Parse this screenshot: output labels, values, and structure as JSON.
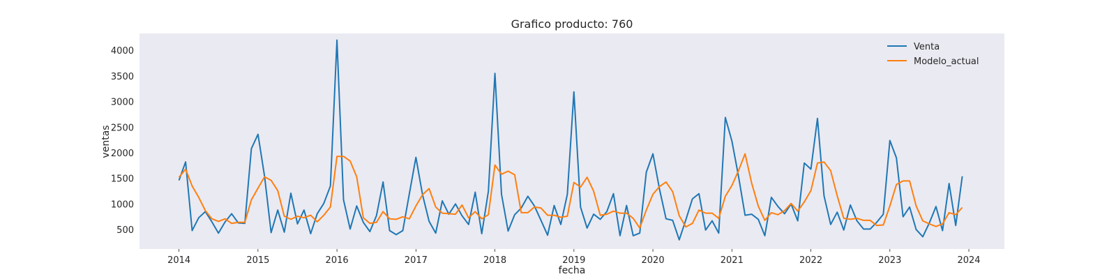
{
  "chart_data": {
    "type": "line",
    "title": "Grafico producto: 760",
    "xlabel": "fecha",
    "ylabel": "ventas",
    "x_start": "2014-01",
    "x_step": "month",
    "x_ticks": [
      "2014",
      "2015",
      "2016",
      "2017",
      "2018",
      "2019",
      "2020",
      "2021",
      "2022",
      "2023",
      "2024"
    ],
    "y_ticks": [
      500,
      1000,
      1500,
      2000,
      2500,
      3000,
      3500,
      4000
    ],
    "ylim": [
      120,
      4330
    ],
    "grid": false,
    "legend_position": "top-right",
    "background": "#eaeaf2",
    "series": [
      {
        "name": "Venta",
        "color": "#1f77b4",
        "values": [
          1460,
          1820,
          480,
          730,
          850,
          650,
          430,
          650,
          810,
          630,
          620,
          2080,
          2360,
          1540,
          440,
          880,
          450,
          1210,
          610,
          880,
          420,
          810,
          1010,
          1350,
          4200,
          1080,
          510,
          960,
          640,
          460,
          770,
          1430,
          480,
          400,
          480,
          1200,
          1910,
          1180,
          660,
          430,
          1060,
          800,
          1000,
          770,
          600,
          1230,
          420,
          1250,
          3550,
          1190,
          470,
          790,
          920,
          1150,
          960,
          680,
          390,
          970,
          600,
          1190,
          3190,
          940,
          530,
          800,
          700,
          850,
          1200,
          380,
          970,
          380,
          430,
          1620,
          1980,
          1290,
          710,
          680,
          300,
          690,
          1100,
          1200,
          490,
          670,
          430,
          2690,
          2230,
          1540,
          780,
          800,
          700,
          380,
          1130,
          950,
          810,
          1000,
          670,
          1800,
          1680,
          2670,
          1160,
          600,
          840,
          490,
          980,
          670,
          510,
          510,
          640,
          800,
          2240,
          1900,
          750,
          940,
          500,
          360,
          630,
          950,
          480,
          1400,
          580,
          1540
        ],
        "style": "line"
      },
      {
        "name": "Modelo_actual",
        "color": "#ff7f0e",
        "values": [
          1520,
          1680,
          1350,
          1130,
          870,
          710,
          660,
          710,
          620,
          640,
          640,
          1080,
          1310,
          1530,
          1460,
          1260,
          760,
          700,
          760,
          730,
          780,
          650,
          780,
          940,
          1930,
          1930,
          1840,
          1530,
          730,
          620,
          640,
          850,
          710,
          700,
          750,
          710,
          960,
          1180,
          1300,
          940,
          820,
          810,
          800,
          980,
          730,
          850,
          710,
          790,
          1760,
          1580,
          1640,
          1570,
          830,
          830,
          940,
          920,
          780,
          780,
          740,
          760,
          1420,
          1330,
          1520,
          1250,
          780,
          800,
          860,
          820,
          820,
          720,
          530,
          880,
          1190,
          1340,
          1430,
          1240,
          770,
          550,
          620,
          880,
          820,
          820,
          720,
          1150,
          1360,
          1650,
          1980,
          1410,
          960,
          680,
          830,
          790,
          870,
          1010,
          860,
          1040,
          1260,
          1800,
          1820,
          1650,
          1160,
          720,
          700,
          720,
          680,
          680,
          580,
          590,
          960,
          1380,
          1450,
          1450,
          960,
          670,
          610,
          560,
          610,
          830,
          790,
          930
        ],
        "style": "line"
      }
    ]
  }
}
